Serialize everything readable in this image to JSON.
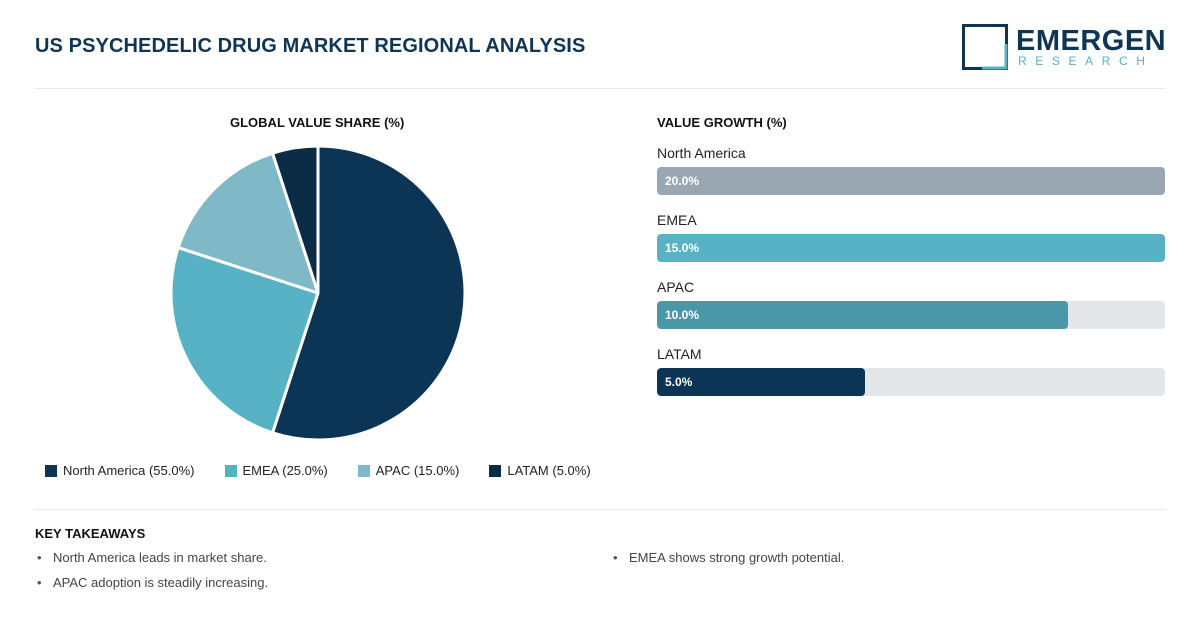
{
  "page": {
    "title": "US PSYCHEDELIC DRUG MARKET REGIONAL ANALYSIS"
  },
  "logo": {
    "word": "EMERGEN",
    "sub": "RESEARCH"
  },
  "colors": {
    "brand": "#0f3554",
    "accent": "#58b2c5",
    "north_america": "#0b3455",
    "emea": "#58b2c5",
    "apac": "#7fb8c6",
    "latam": "#0b2c44",
    "bar_north_america": "#9aa6b1",
    "bar_emea": "#58b2c5",
    "bar_apac": "#4a97a8",
    "bar_latam": "#0b3455",
    "track": "#e4e7ea"
  },
  "chart_data": [
    {
      "type": "pie",
      "title": "GLOBAL VALUE SHARE (%)",
      "categories": [
        "North America",
        "EMEA",
        "APAC",
        "LATAM"
      ],
      "values": [
        55.0,
        25.0,
        15.0,
        5.0
      ],
      "legend": [
        "North America (55.0%)",
        "EMEA (25.0%)",
        "APAC (15.0%)",
        "LATAM (5.0%)"
      ],
      "legend_position": "bottom"
    },
    {
      "type": "bar",
      "orientation": "horizontal",
      "title": "VALUE GROWTH (%)",
      "categories": [
        "North America",
        "EMEA",
        "APAC",
        "LATAM"
      ],
      "values": [
        20.0,
        15.0,
        10.0,
        5.0
      ],
      "value_labels": [
        "20.0%",
        "15.0%",
        "10.0%",
        "5.0%"
      ],
      "fill_fraction": [
        1.0,
        1.0,
        0.81,
        0.41
      ]
    }
  ],
  "takeaways": {
    "title": "KEY TAKEAWAYS",
    "items": [
      "North America leads in market share.",
      "APAC adoption is steadily increasing.",
      "EMEA shows strong growth potential."
    ]
  }
}
